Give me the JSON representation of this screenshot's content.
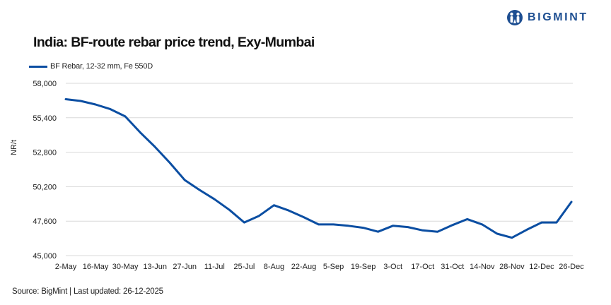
{
  "brand": {
    "name": "BIGMINT",
    "color": "#1d4e91"
  },
  "header": {
    "title": "India: BF-route rebar price trend, Exy-Mumbai"
  },
  "legend": {
    "label": "BF Rebar, 12-32 mm, Fe 550D",
    "color": "#0b4ea2"
  },
  "footer": {
    "source": "Source: BigMint | Last updated: 26-12-2025"
  },
  "chart_data": {
    "type": "line",
    "title": "India: BF-route rebar price trend, Exy-Mumbai",
    "xlabel": "",
    "ylabel": "NR/t",
    "ylim": [
      45000,
      58000
    ],
    "yticks": [
      45000,
      47600,
      50200,
      52800,
      55400,
      58000
    ],
    "ytick_labels": [
      "45,000",
      "47,600",
      "50,200",
      "52,800",
      "55,400",
      "58,000"
    ],
    "xtick_labels": [
      "2-May",
      "16-May",
      "30-May",
      "13-Jun",
      "27-Jun",
      "11-Jul",
      "25-Jul",
      "8-Aug",
      "22-Aug",
      "5-Sep",
      "19-Sep",
      "3-Oct",
      "17-Oct",
      "31-Oct",
      "14-Nov",
      "28-Nov",
      "12-Dec",
      "26-Dec"
    ],
    "grid": "horizontal",
    "legend_position": "top-left",
    "x": [
      "2-May",
      "9-May",
      "16-May",
      "23-May",
      "30-May",
      "6-Jun",
      "13-Jun",
      "20-Jun",
      "27-Jun",
      "4-Jul",
      "11-Jul",
      "18-Jul",
      "25-Jul",
      "1-Aug",
      "8-Aug",
      "15-Aug",
      "22-Aug",
      "29-Aug",
      "5-Sep",
      "12-Sep",
      "19-Sep",
      "26-Sep",
      "3-Oct",
      "10-Oct",
      "17-Oct",
      "24-Oct",
      "31-Oct",
      "7-Nov",
      "14-Nov",
      "21-Nov",
      "28-Nov",
      "5-Dec",
      "12-Dec",
      "19-Dec",
      "26-Dec"
    ],
    "series": [
      {
        "name": "BF Rebar, 12-32 mm, Fe 550D",
        "color": "#0b4ea2",
        "values": [
          56800,
          56670,
          56400,
          56050,
          55500,
          54300,
          53200,
          52000,
          50700,
          49950,
          49250,
          48450,
          47500,
          48000,
          48800,
          48400,
          47900,
          47350,
          47350,
          47250,
          47100,
          46800,
          47250,
          47150,
          46900,
          46800,
          47300,
          47750,
          47350,
          46650,
          46350,
          46950,
          47500,
          47500,
          49050
        ]
      }
    ]
  }
}
